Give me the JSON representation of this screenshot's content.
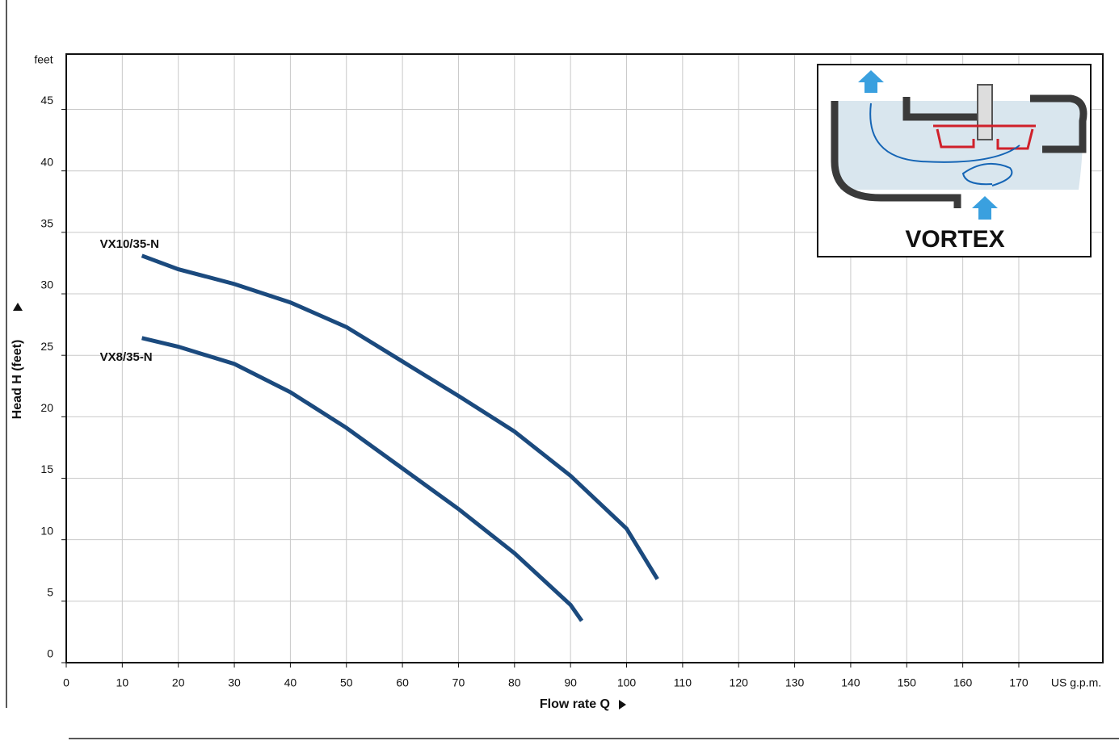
{
  "chart_data": {
    "type": "line",
    "x_label": "Flow rate Q",
    "y_label": "Head H  (feet)",
    "x_unit": "US g.p.m.",
    "y_unit": "feet",
    "inset_title": "VORTEX",
    "xlim": [
      0,
      185
    ],
    "ylim": [
      0,
      49.5
    ],
    "xticks": [
      0,
      10,
      20,
      30,
      40,
      50,
      60,
      70,
      80,
      90,
      100,
      110,
      120,
      130,
      140,
      150,
      160,
      170
    ],
    "yticks": [
      0,
      5,
      10,
      15,
      20,
      25,
      30,
      35,
      40,
      45
    ],
    "grid": true,
    "series": [
      {
        "name": "VX10/35-N",
        "color": "#1b4a7e",
        "x": [
          13.5,
          20,
          30,
          40,
          50,
          60,
          70,
          80,
          90,
          100,
          105.5
        ],
        "values": [
          33.1,
          32.0,
          30.8,
          29.3,
          27.3,
          24.5,
          21.7,
          18.8,
          15.2,
          10.9,
          6.8
        ]
      },
      {
        "name": "VX8/35-N",
        "color": "#1b4a7e",
        "x": [
          13.5,
          20,
          30,
          40,
          50,
          60,
          70,
          80,
          90,
          92
        ],
        "values": [
          26.4,
          25.7,
          24.3,
          22.0,
          19.1,
          15.8,
          12.5,
          8.9,
          4.7,
          3.4
        ]
      }
    ]
  }
}
